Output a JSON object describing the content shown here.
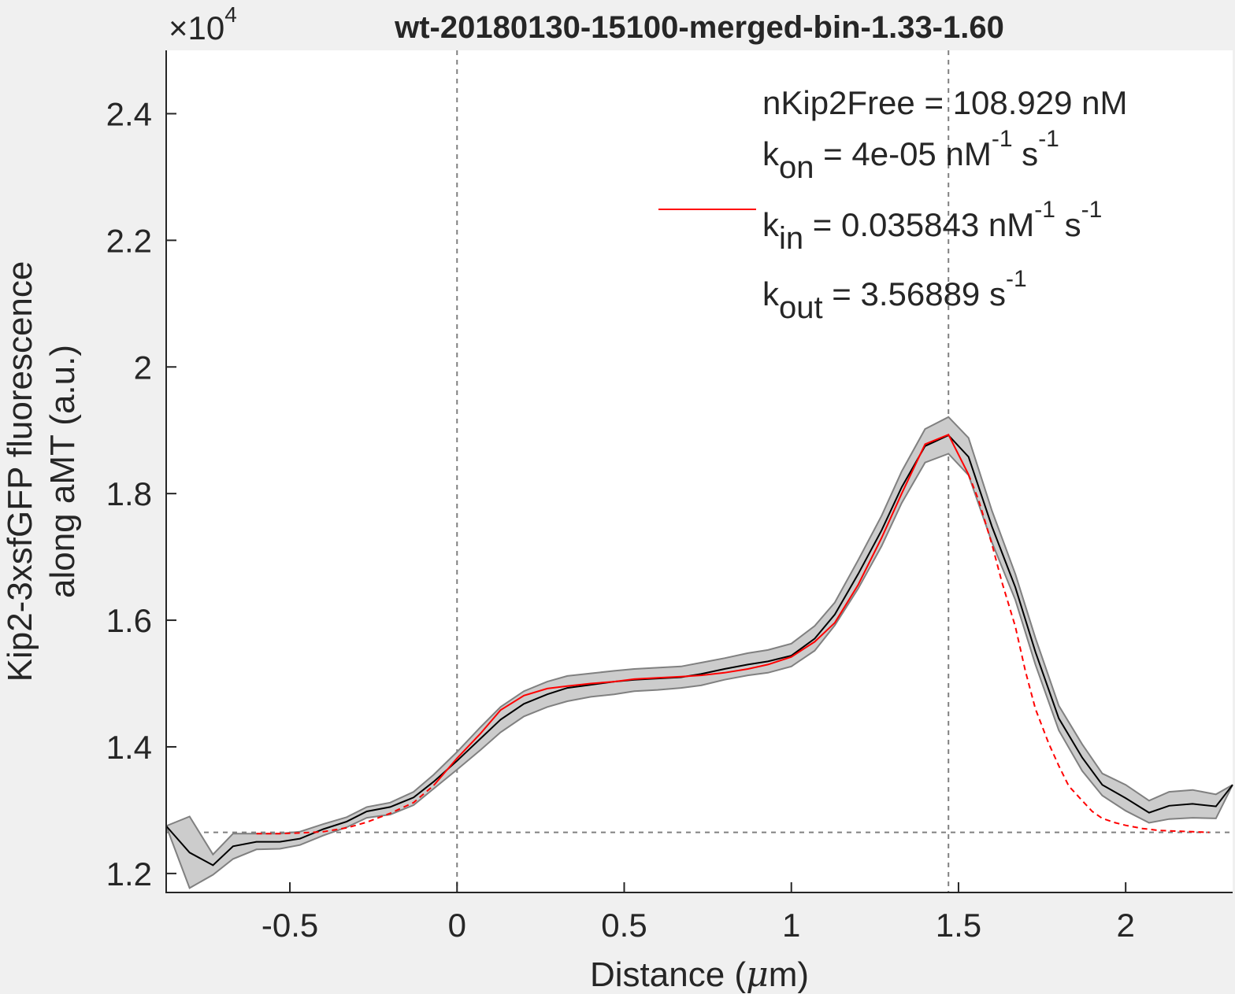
{
  "chart_data": {
    "type": "line",
    "title": "wt-20180130-15100-merged-bin-1.33-1.60",
    "xlabel": "Distance (",
    "xlabel_mu": "μ",
    "xlabel_unit": "m)",
    "ylabel_line1": "Kip2-3xsfGFP fluorescence",
    "ylabel_line2": "along aMT (a.u.)",
    "exponent_base": "×10",
    "exponent_power": "4",
    "xlim": [
      -0.87,
      2.32
    ],
    "ylim": [
      11700,
      25000
    ],
    "xticks": [
      -0.5,
      0,
      0.5,
      1,
      1.5,
      2
    ],
    "xtick_labels": [
      "-0.5",
      "0",
      "0.5",
      "1",
      "1.5",
      "2"
    ],
    "yticks": [
      12000,
      14000,
      16000,
      18000,
      20000,
      22000,
      24000
    ],
    "ytick_labels": [
      "1.2",
      "1.4",
      "1.6",
      "1.8",
      "2",
      "2.2",
      "2.4"
    ],
    "grid": false,
    "reference_lines": {
      "vertical_x": [
        0,
        1.47
      ],
      "horizontal_y": 12650
    },
    "colors": {
      "data": "#000000",
      "band_fill": "#cccccc",
      "band_edge": "#808080",
      "fit": "#ff0000",
      "ref_lines": "#808080"
    },
    "series": [
      {
        "x": [
          -0.87,
          -0.8,
          -0.73,
          -0.67,
          -0.6,
          -0.53,
          -0.47,
          -0.4,
          -0.33,
          -0.27,
          -0.2,
          -0.13,
          -0.07,
          0,
          0.07,
          0.13,
          0.2,
          0.27,
          0.33,
          0.4,
          0.47,
          0.53,
          0.6,
          0.67,
          0.73,
          0.8,
          0.87,
          0.93,
          1.0,
          1.07,
          1.13,
          1.2,
          1.27,
          1.33,
          1.4,
          1.47,
          1.53,
          1.6,
          1.67,
          1.73,
          1.8,
          1.87,
          1.93,
          2.0,
          2.07,
          2.13,
          2.2,
          2.27,
          2.32
        ],
        "y": [
          12750,
          12330,
          12130,
          12430,
          12500,
          12500,
          12550,
          12700,
          12820,
          12980,
          13050,
          13200,
          13450,
          13780,
          14130,
          14430,
          14680,
          14830,
          14930,
          14980,
          15030,
          15060,
          15080,
          15100,
          15150,
          15230,
          15300,
          15350,
          15440,
          15710,
          16090,
          16730,
          17420,
          18100,
          18750,
          18920,
          18580,
          17480,
          16520,
          15500,
          14450,
          13830,
          13400,
          13190,
          12960,
          13070,
          13100,
          13060,
          13400
        ],
        "band_upper": [
          12750,
          12900,
          12300,
          12630,
          12630,
          12630,
          12660,
          12780,
          12890,
          13050,
          13120,
          13290,
          13560,
          13920,
          14310,
          14630,
          14880,
          15030,
          15120,
          15160,
          15200,
          15230,
          15250,
          15270,
          15330,
          15400,
          15480,
          15530,
          15630,
          15910,
          16280,
          16950,
          17650,
          18350,
          19020,
          19210,
          18880,
          17730,
          16730,
          15720,
          14650,
          14040,
          13580,
          13400,
          13150,
          13290,
          13320,
          13250,
          13400
        ],
        "band_lower": [
          12750,
          11770,
          11980,
          12230,
          12380,
          12390,
          12450,
          12600,
          12730,
          12880,
          12930,
          13080,
          13340,
          13640,
          13950,
          14230,
          14480,
          14630,
          14720,
          14790,
          14830,
          14880,
          14900,
          14930,
          14970,
          15060,
          15130,
          15170,
          15270,
          15520,
          15920,
          16500,
          17170,
          17850,
          18490,
          18630,
          18290,
          17230,
          16320,
          15300,
          14260,
          13620,
          13230,
          12990,
          12800,
          12860,
          12880,
          12870,
          13400
        ]
      },
      {
        "x": [
          -0.07,
          0,
          0.07,
          0.13,
          0.2,
          0.27,
          0.33,
          0.4,
          0.47,
          0.53,
          0.6,
          0.67,
          0.73,
          0.8,
          0.87,
          0.93,
          1.0,
          1.07,
          1.13,
          1.2,
          1.27,
          1.33,
          1.4,
          1.47,
          1.53
        ],
        "y": [
          13390,
          13820,
          14210,
          14580,
          14810,
          14920,
          14960,
          15000,
          15030,
          15070,
          15090,
          15110,
          15130,
          15170,
          15230,
          15300,
          15420,
          15660,
          15960,
          16560,
          17300,
          18000,
          18780,
          18930,
          18300
        ]
      },
      {
        "x": [
          -0.6,
          -0.53,
          -0.47,
          -0.4,
          -0.33,
          -0.27,
          -0.2,
          -0.13,
          -0.07,
          1.53,
          1.56,
          1.6,
          1.63,
          1.67,
          1.7,
          1.73,
          1.77,
          1.8,
          1.83,
          1.87,
          1.9,
          1.93,
          1.97,
          2.0,
          2.05,
          2.1,
          2.15,
          2.2,
          2.25
        ],
        "y": [
          12630,
          12630,
          12640,
          12660,
          12720,
          12810,
          12950,
          13120,
          13390,
          18300,
          17900,
          17200,
          16600,
          15900,
          15200,
          14600,
          14050,
          13700,
          13380,
          13150,
          12980,
          12870,
          12800,
          12760,
          12710,
          12680,
          12670,
          12660,
          12650
        ]
      }
    ],
    "legend_position": "top-right",
    "annotations": [
      {
        "text": "nKip2Free = 108.929 nM",
        "sub": "",
        "rest": "",
        "unit": "",
        "sup": "",
        "unit2": "",
        "sup2": ""
      },
      {
        "text": "k",
        "sub": "on",
        "rest": " = 4e-05 ",
        "unit": "nM",
        "sup": "-1",
        "unit2": " s",
        "sup2": "-1"
      },
      {
        "text": "k",
        "sub": "in",
        "rest": " = 0.035843 ",
        "unit": "nM",
        "sup": "-1",
        "unit2": " s",
        "sup2": "-1"
      },
      {
        "text": "k",
        "sub": "out",
        "rest": " = 3.56889 ",
        "unit": "",
        "sup": "",
        "unit2": "s",
        "sup2": "-1"
      }
    ]
  }
}
